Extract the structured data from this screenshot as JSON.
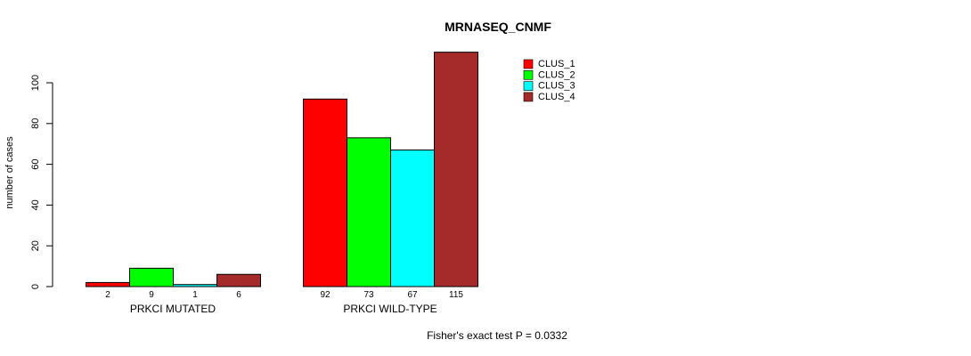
{
  "chart_data": {
    "type": "bar",
    "title": "MRNASEQ_CNMF",
    "ylabel": "number of cases",
    "xlabel": "",
    "categories": [
      "PRKCI MUTATED",
      "PRKCI WILD-TYPE"
    ],
    "groups": [
      {
        "label": "PRKCI MUTATED",
        "values": [
          2,
          9,
          1,
          6
        ]
      },
      {
        "label": "PRKCI WILD-TYPE",
        "values": [
          92,
          73,
          67,
          115
        ]
      }
    ],
    "series": [
      {
        "name": "CLUS_1",
        "color": "#FF0000"
      },
      {
        "name": "CLUS_2",
        "color": "#00FF00"
      },
      {
        "name": "CLUS_3",
        "color": "#00FFFF"
      },
      {
        "name": "CLUS_4",
        "color": "#A52A2A"
      }
    ],
    "yticks": [
      0,
      20,
      40,
      60,
      80,
      100
    ],
    "ylim": [
      0,
      115
    ],
    "grid": "off",
    "legend_position": "right-top",
    "bar_outline_color": "#000000",
    "axis_color": "#000000",
    "background_color": "#FFFFFF",
    "value_labels_shown": true,
    "footnote": "Fisher's exact test P = 0.0332"
  }
}
